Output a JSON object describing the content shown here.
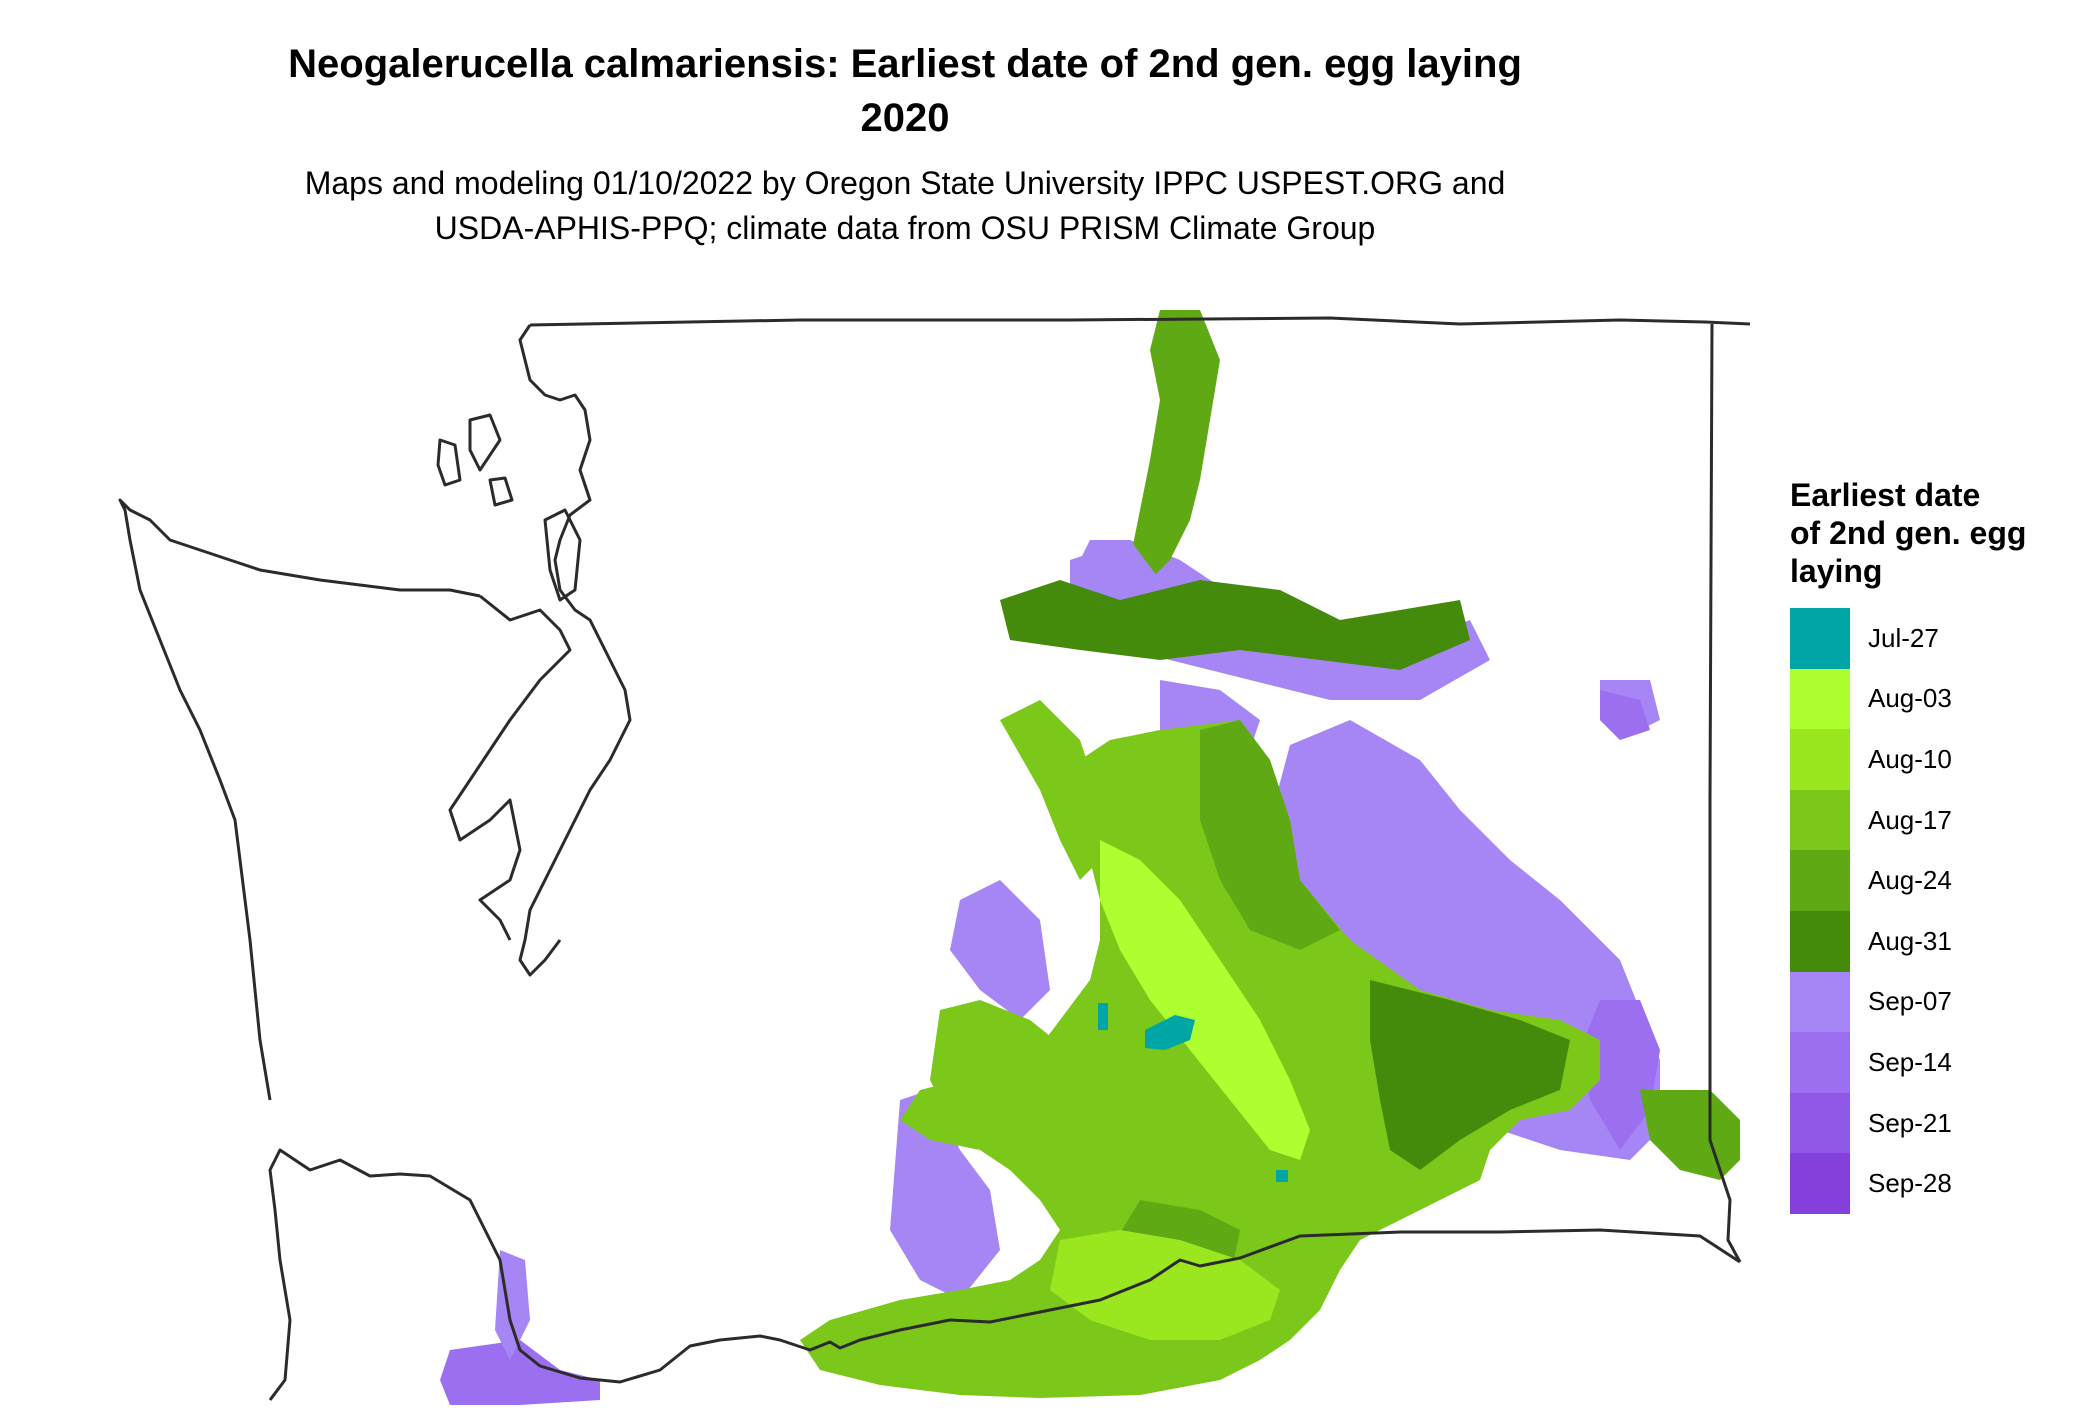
{
  "header": {
    "title_line1": "Neogalerucella calmariensis: Earliest date of 2nd gen. egg laying",
    "title_line2": "2020",
    "subtitle_line1": "Maps and modeling 01/10/2022 by Oregon State University IPPC USPEST.ORG and",
    "subtitle_line2": "USDA-APHIS-PPQ; climate data from OSU PRISM Climate Group"
  },
  "legend": {
    "title_lines": [
      "Earliest date",
      "of 2nd gen. egg",
      "laying"
    ],
    "items": [
      {
        "label": "Jul-27",
        "color": "#00A6A6"
      },
      {
        "label": "Aug-03",
        "color": "#ADFF2F"
      },
      {
        "label": "Aug-10",
        "color": "#9AE61F"
      },
      {
        "label": "Aug-17",
        "color": "#7CC81A"
      },
      {
        "label": "Aug-24",
        "color": "#5FAA14"
      },
      {
        "label": "Aug-31",
        "color": "#448B0C"
      },
      {
        "label": "Sep-07",
        "color": "#A686F5"
      },
      {
        "label": "Sep-14",
        "color": "#9B6FEF"
      },
      {
        "label": "Sep-21",
        "color": "#9058E6"
      },
      {
        "label": "Sep-28",
        "color": "#8540DB"
      }
    ]
  },
  "map": {
    "outline_color": "#2b2b2b"
  }
}
